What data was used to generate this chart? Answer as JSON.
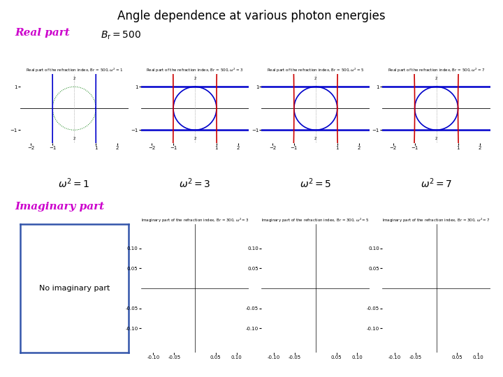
{
  "title": "Angle dependence at various photon energies",
  "title_fontsize": 12,
  "real_part_label": "Real part",
  "imag_part_label": "Imaginary part",
  "no_imag_label": "No imaginary part",
  "Br": 500,
  "omega_sq_values": [
    1,
    3,
    5,
    7
  ],
  "label_color": "#CC00CC",
  "blue": "#0000CC",
  "red": "#CC0000",
  "green": "#007700",
  "box_color": "#3355AA",
  "background_color": "#FFFFFF",
  "real_xlim": [
    -2.5,
    2.5
  ],
  "real_ylim": [
    -1.6,
    1.6
  ],
  "imag_xlim": [
    -0.13,
    0.13
  ],
  "imag_ylim": [
    -0.16,
    0.16
  ],
  "real_xticks": [
    -2,
    -1,
    1,
    2
  ],
  "real_yticks": [
    -1,
    1
  ],
  "imag_xticks": [
    -0.1,
    -0.05,
    0.05,
    0.1
  ],
  "imag_yticks": [
    -0.1,
    -0.05,
    0.05,
    0.1
  ],
  "real_subplot_title_fs": 4.0,
  "imag_subplot_title_fs": 4.0,
  "omega_label_fs": 10,
  "tick_fs": 5
}
